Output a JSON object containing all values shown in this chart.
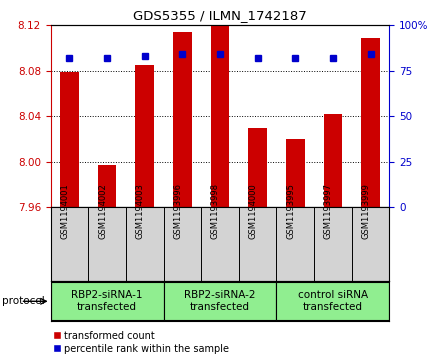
{
  "title": "GDS5355 / ILMN_1742187",
  "samples": [
    "GSM1194001",
    "GSM1194002",
    "GSM1194003",
    "GSM1193996",
    "GSM1193998",
    "GSM1194000",
    "GSM1193995",
    "GSM1193997",
    "GSM1193999"
  ],
  "red_values": [
    8.079,
    7.997,
    8.085,
    8.114,
    8.12,
    8.03,
    8.02,
    8.042,
    8.109
  ],
  "blue_values": [
    82,
    82,
    83,
    84,
    84,
    82,
    82,
    82,
    84
  ],
  "ylim_left": [
    7.96,
    8.12
  ],
  "ylim_right": [
    0,
    100
  ],
  "yticks_left": [
    7.96,
    8.0,
    8.04,
    8.08,
    8.12
  ],
  "yticks_right": [
    0,
    25,
    50,
    75,
    100
  ],
  "groups": [
    {
      "label": "RBP2-siRNA-1\ntransfected",
      "indices": [
        0,
        1,
        2
      ],
      "color": "#90EE90"
    },
    {
      "label": "RBP2-siRNA-2\ntransfected",
      "indices": [
        3,
        4,
        5
      ],
      "color": "#90EE90"
    },
    {
      "label": "control siRNA\ntransfected",
      "indices": [
        6,
        7,
        8
      ],
      "color": "#90EE90"
    }
  ],
  "protocol_label": "protocol",
  "bar_color": "#CC0000",
  "dot_color": "#0000CC",
  "bar_width": 0.5,
  "tick_color_left": "#CC0000",
  "tick_color_right": "#0000CC",
  "background_color": "#ffffff",
  "sample_bg_color": "#D3D3D3"
}
